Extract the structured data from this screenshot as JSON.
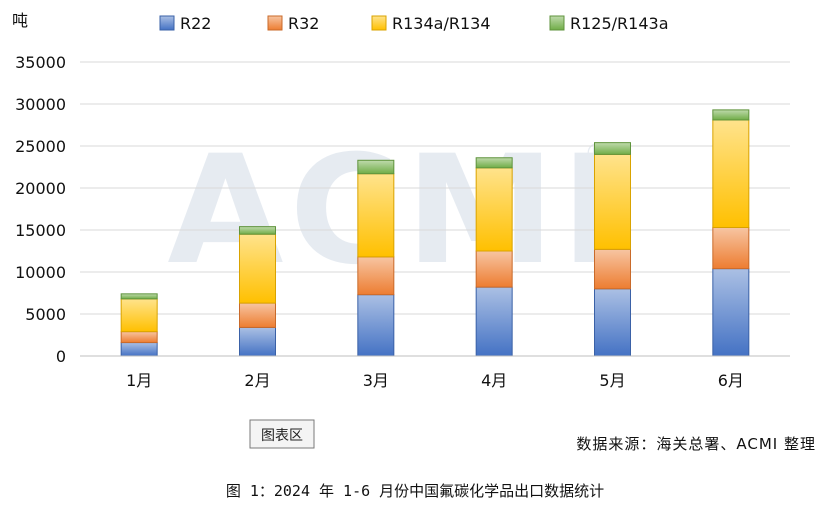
{
  "chart_data": {
    "type": "bar",
    "stacked": true,
    "y_unit": "吨",
    "categories": [
      "1月",
      "2月",
      "3月",
      "4月",
      "5月",
      "6月"
    ],
    "series": [
      {
        "name": "R22",
        "color": "#4472c4",
        "values": [
          1600,
          3400,
          7300,
          8200,
          8000,
          10400
        ]
      },
      {
        "name": "R32",
        "color": "#ed7d31",
        "values": [
          1300,
          2900,
          4500,
          4300,
          4700,
          4900
        ]
      },
      {
        "name": "R134a/R134",
        "color": "#ffc000",
        "values": [
          3900,
          8200,
          9900,
          9900,
          11300,
          12800
        ]
      },
      {
        "name": "R125/R143a",
        "color": "#70ad47",
        "values": [
          600,
          900,
          1600,
          1200,
          1400,
          1200
        ]
      }
    ],
    "ylim": [
      0,
      35000
    ],
    "yticks": [
      0,
      5000,
      10000,
      15000,
      20000,
      25000,
      30000,
      35000
    ],
    "grid": true,
    "legend_position": "top"
  },
  "chart_area_tag": "图表区",
  "source_note": "数据来源：海关总署、ACMI 整理",
  "caption": "图 1：2024 年 1-6 月份中国氟碳化学品出口数据统计",
  "watermark": {
    "text": "ACMI",
    "registered": "®"
  }
}
